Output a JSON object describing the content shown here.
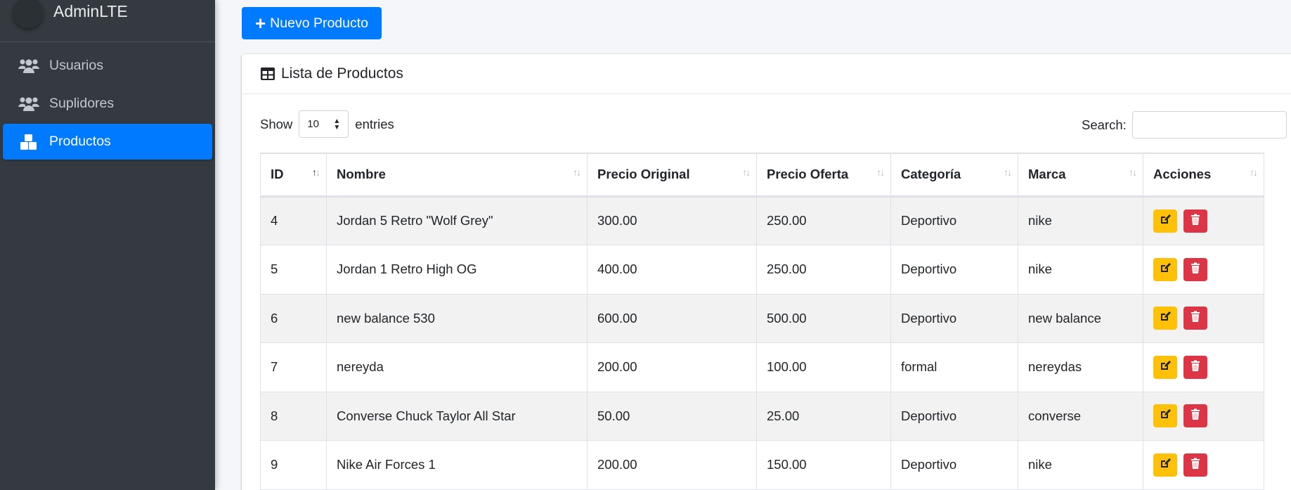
{
  "sidebar": {
    "brand": "AdminLTE",
    "items": [
      {
        "label": "Usuarios",
        "icon": "users-icon"
      },
      {
        "label": "Suplidores",
        "icon": "users-icon"
      },
      {
        "label": "Productos",
        "icon": "boxes-icon",
        "active": true
      }
    ]
  },
  "toolbar": {
    "new_label": "Nuevo Producto"
  },
  "card": {
    "title": "Lista de Productos"
  },
  "datatable": {
    "show_label": "Show",
    "entries_value": "10",
    "entries_label": "entries",
    "search_label": "Search:",
    "search_value": ""
  },
  "table": {
    "columns": [
      "ID",
      "Nombre",
      "Precio Original",
      "Precio Oferta",
      "Categoría",
      "Marca",
      "Acciones"
    ],
    "rows": [
      [
        "4",
        "Jordan 5 Retro \"Wolf Grey\"",
        "300.00",
        "250.00",
        "Deportivo",
        "nike"
      ],
      [
        "5",
        "Jordan 1 Retro High OG",
        "400.00",
        "250.00",
        "Deportivo",
        "nike"
      ],
      [
        "6",
        "new balance 530",
        "600.00",
        "500.00",
        "Deportivo",
        "new balance"
      ],
      [
        "7",
        "nereyda",
        "200.00",
        "100.00",
        "formal",
        "nereydas"
      ],
      [
        "8",
        "Converse Chuck Taylor All Star",
        "50.00",
        "25.00",
        "Deportivo",
        "converse"
      ],
      [
        "9",
        "Nike Air Forces 1",
        "200.00",
        "150.00",
        "Deportivo",
        "nike"
      ]
    ]
  },
  "colors": {
    "primary": "#007bff",
    "warning": "#ffc107",
    "danger": "#dc3545",
    "sidebar": "#343a40"
  }
}
